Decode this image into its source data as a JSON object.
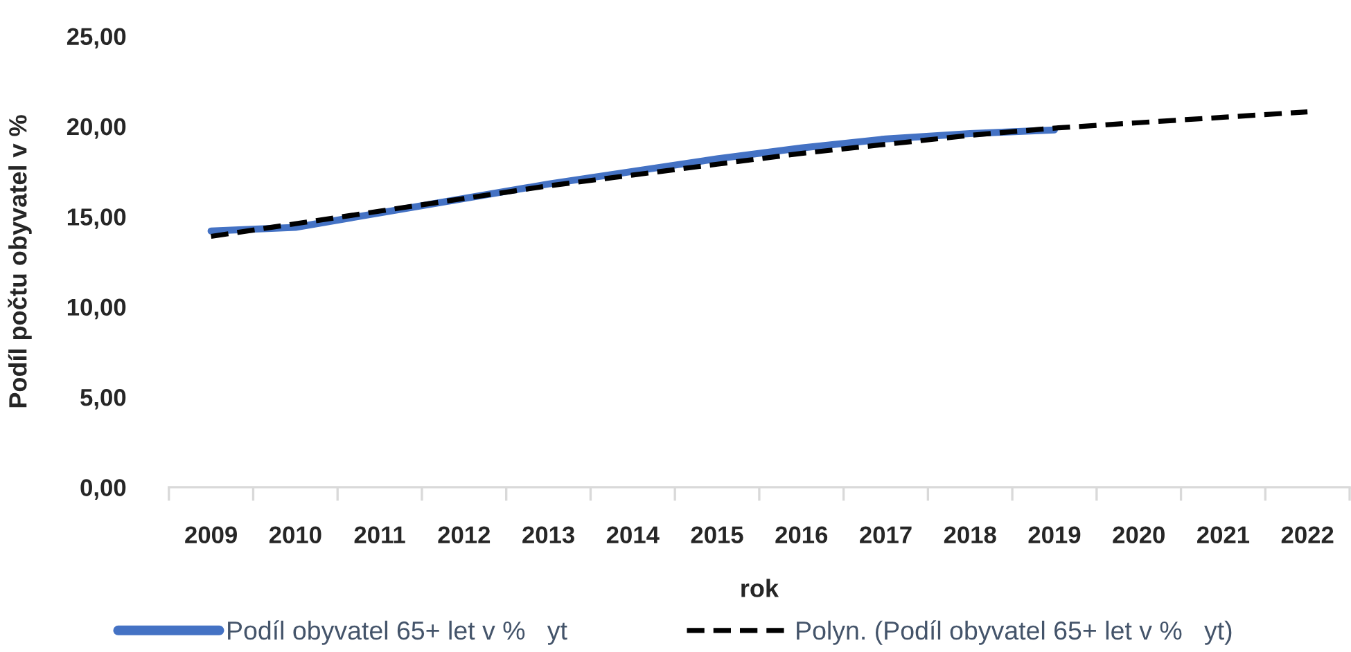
{
  "chart_data": {
    "type": "line",
    "xlabel": "rok",
    "ylabel": "Podíl počtu obyvatel v %",
    "categories": [
      "2009",
      "2010",
      "2011",
      "2012",
      "2013",
      "2014",
      "2015",
      "2016",
      "2017",
      "2018",
      "2019",
      "2020",
      "2021",
      "2022"
    ],
    "series": [
      {
        "name": "Podíl obyvatel 65+ let v %   yt",
        "color": "#4472c4",
        "line_style": "solid",
        "values": [
          14.2,
          14.4,
          15.2,
          16.0,
          16.8,
          17.5,
          18.2,
          18.8,
          19.3,
          19.6,
          19.8,
          null,
          null,
          null
        ]
      },
      {
        "name": "Polyn. (Podíl obyvatel 65+ let v %   yt)",
        "color": "#000000",
        "line_style": "dashed",
        "values": [
          13.9,
          14.6,
          15.3,
          16.0,
          16.7,
          17.3,
          17.9,
          18.5,
          19.0,
          19.5,
          19.9,
          20.2,
          20.5,
          20.8
        ]
      }
    ],
    "ylim": [
      0,
      25
    ],
    "yticks": [
      {
        "value": 0,
        "label": "0,00"
      },
      {
        "value": 5,
        "label": "5,00"
      },
      {
        "value": 10,
        "label": "10,00"
      },
      {
        "value": 15,
        "label": "15,00"
      },
      {
        "value": 20,
        "label": "20,00"
      },
      {
        "value": 25,
        "label": "25,00"
      }
    ],
    "legend": "bottom"
  }
}
